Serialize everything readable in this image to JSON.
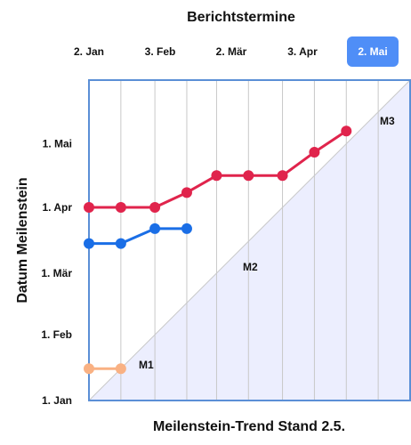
{
  "chart_data": {
    "type": "line",
    "title": "Berichtstermine",
    "xlabel": "Meilenstein-Trend Stand 2.5.",
    "ylabel": "Datum Meilenstein",
    "report_dates": [
      "2. Jan",
      "3. Feb",
      "2. Mär",
      "3. Apr",
      "2. Mai"
    ],
    "selected_report": "2. Mai",
    "y_ticks": [
      "1. Jan",
      "1. Feb",
      "1. Mär",
      "1. Apr",
      "1. Mai"
    ],
    "x_range": [
      "2024-01-01",
      "2024-05-31"
    ],
    "y_range": [
      "2024-01-01",
      "2024-05-31"
    ],
    "x_gridlines": [
      "2024-01-16",
      "2024-02-01",
      "2024-02-16",
      "2024-03-01",
      "2024-03-16",
      "2024-04-01",
      "2024-04-16",
      "2024-05-01",
      "2024-05-16"
    ],
    "series": [
      {
        "name": "M1",
        "color": "#f9b183",
        "x": [
          "2024-01-01",
          "2024-01-16"
        ],
        "y": [
          "2024-01-16",
          "2024-01-16"
        ]
      },
      {
        "name": "M2",
        "color": "#1a6ee6",
        "x": [
          "2024-01-01",
          "2024-01-16",
          "2024-02-01",
          "2024-02-16"
        ],
        "y": [
          "2024-03-15",
          "2024-03-15",
          "2024-03-22",
          "2024-03-22"
        ]
      },
      {
        "name": "M3",
        "color": "#e0244c",
        "x": [
          "2024-01-01",
          "2024-01-16",
          "2024-02-01",
          "2024-02-16",
          "2024-03-01",
          "2024-03-16",
          "2024-04-01",
          "2024-04-16",
          "2024-05-01"
        ],
        "y": [
          "2024-04-01",
          "2024-04-01",
          "2024-04-01",
          "2024-04-08",
          "2024-04-16",
          "2024-04-16",
          "2024-04-16",
          "2024-04-27",
          "2024-05-07"
        ]
      }
    ],
    "shaded_region": "below-diagonal",
    "colors": {
      "frame": "#5b8fd6",
      "shade": "#eceefe",
      "selected_button": "#4f8ef7",
      "diagonal": "#c8c8c8"
    },
    "grid": true
  }
}
